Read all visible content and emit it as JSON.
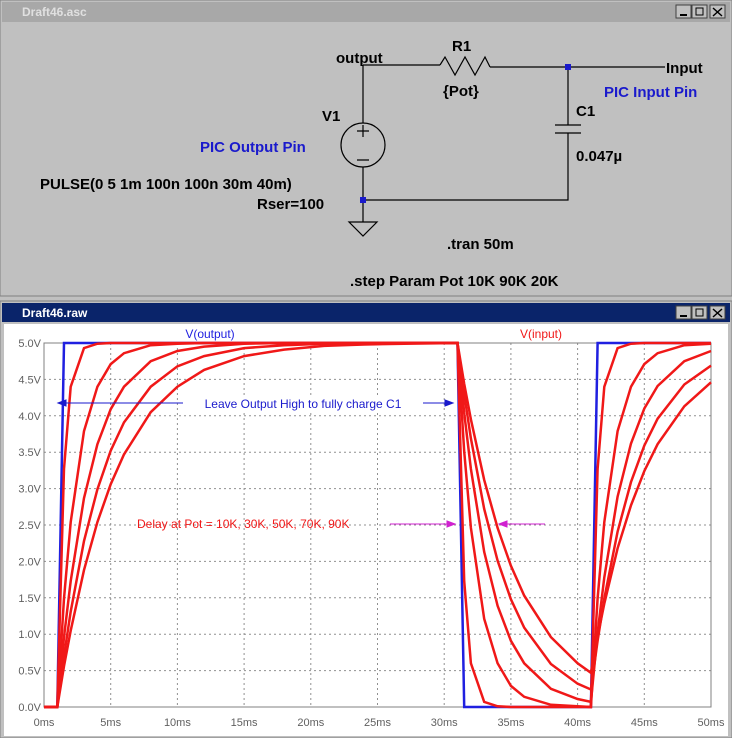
{
  "schematic": {
    "window_title": "Draft46.asc",
    "labels": {
      "output": "output",
      "r1": "R1",
      "r1_value": "{Pot}",
      "input": "Input",
      "input_note": "PIC Input Pin",
      "c1": "C1",
      "c1_value": "0.047µ",
      "v1": "V1",
      "output_note": "PIC Output Pin",
      "v1_value": "PULSE(0 5 1m 100n 100n 30m 40m)",
      "v1_rser": "Rser=100",
      "tran": ".tran 50m",
      "step": ".step Param Pot 10K 90K 20K"
    }
  },
  "plot_window_title": "Draft46.raw",
  "chart_data": {
    "type": "line",
    "x": [
      0,
      1,
      1.5,
      2,
      3,
      4,
      5,
      6,
      8,
      10,
      12,
      15,
      18,
      21,
      24,
      27,
      31,
      31.5,
      32,
      33,
      34,
      35,
      36,
      38,
      40,
      41,
      41.5,
      42,
      43,
      44,
      45,
      46,
      48,
      50
    ],
    "series": [
      {
        "name": "V(output)",
        "color": "#2020e0",
        "values": [
          0,
          0,
          5,
          5,
          5,
          5,
          5,
          5,
          5,
          5,
          5,
          5,
          5,
          5,
          5,
          5,
          5,
          0,
          0,
          0,
          0,
          0,
          0,
          0,
          0,
          0,
          5,
          5,
          5,
          5,
          5,
          5,
          5,
          5
        ]
      },
      {
        "name": "V(input)",
        "color": "#f01818",
        "values": [
          0,
          0,
          3.27,
          4.4,
          4.93,
          4.99,
          5,
          5,
          5,
          5,
          5,
          5,
          5,
          5,
          5,
          5,
          5,
          1.73,
          0.6,
          0.07,
          0.01,
          0,
          0,
          0,
          0,
          0,
          3.27,
          4.4,
          4.93,
          4.99,
          5,
          5,
          5,
          5
        ]
      },
      {
        "color": "#f01818",
        "values": [
          0,
          0,
          1.49,
          2.54,
          3.79,
          4.4,
          4.71,
          4.86,
          4.97,
          4.99,
          5,
          5,
          5,
          5,
          5,
          5,
          5,
          3.51,
          2.46,
          1.21,
          0.6,
          0.29,
          0.14,
          0.03,
          0.01,
          0,
          1.49,
          2.54,
          3.79,
          4.4,
          4.71,
          4.86,
          4.97,
          4.99
        ]
      },
      {
        "color": "#f01818",
        "values": [
          0,
          0,
          0.96,
          1.73,
          2.87,
          3.61,
          4.09,
          4.4,
          4.75,
          4.89,
          4.95,
          4.99,
          5,
          5,
          5,
          5,
          5,
          4.04,
          3.27,
          2.13,
          1.39,
          0.91,
          0.6,
          0.25,
          0.11,
          0.07,
          1.02,
          1.78,
          2.89,
          3.62,
          4.1,
          4.41,
          4.75,
          4.89
        ]
      },
      {
        "color": "#f01818",
        "values": [
          0,
          0,
          0.7,
          1.31,
          2.28,
          2.99,
          3.52,
          3.91,
          4.4,
          4.68,
          4.82,
          4.93,
          4.97,
          4.99,
          5,
          5,
          5,
          4.3,
          3.69,
          2.72,
          2.01,
          1.48,
          1.09,
          0.59,
          0.32,
          0.24,
          0.91,
          1.49,
          2.41,
          3.09,
          3.59,
          3.96,
          4.43,
          4.69
        ]
      },
      {
        "color": "#f01818",
        "values": [
          0,
          0,
          0.56,
          1.05,
          1.88,
          2.54,
          3.06,
          3.47,
          4.05,
          4.4,
          4.63,
          4.82,
          4.91,
          4.96,
          4.98,
          4.99,
          5,
          4.44,
          3.95,
          3.12,
          2.46,
          1.94,
          1.53,
          0.96,
          0.6,
          0.47,
          0.97,
          1.42,
          2.18,
          2.77,
          3.24,
          3.61,
          4.13,
          4.46
        ]
      }
    ],
    "xlim": [
      0,
      50
    ],
    "xticks": [
      {
        "value": 0,
        "label": "0ms"
      },
      {
        "value": 5,
        "label": "5ms"
      },
      {
        "value": 10,
        "label": "10ms"
      },
      {
        "value": 15,
        "label": "15ms"
      },
      {
        "value": 20,
        "label": "20ms"
      },
      {
        "value": 25,
        "label": "25ms"
      },
      {
        "value": 30,
        "label": "30ms"
      },
      {
        "value": 35,
        "label": "35ms"
      },
      {
        "value": 40,
        "label": "40ms"
      },
      {
        "value": 45,
        "label": "45ms"
      },
      {
        "value": 50,
        "label": "50ms"
      }
    ],
    "ylim": [
      0,
      5
    ],
    "yticks": [
      {
        "value": 0,
        "label": "0.0V"
      },
      {
        "value": 0.5,
        "label": "0.5V"
      },
      {
        "value": 1,
        "label": "1.0V"
      },
      {
        "value": 1.5,
        "label": "1.5V"
      },
      {
        "value": 2,
        "label": "2.0V"
      },
      {
        "value": 2.5,
        "label": "2.5V"
      },
      {
        "value": 3,
        "label": "3.0V"
      },
      {
        "value": 3.5,
        "label": "3.5V"
      },
      {
        "value": 4,
        "label": "4.0V"
      },
      {
        "value": 4.5,
        "label": "4.5V"
      },
      {
        "value": 5,
        "label": "5.0V"
      }
    ],
    "grid": true,
    "annotations": [
      "Leave Output High to fully charge C1",
      "Delay at Pot = 10K, 30K, 50K, 70K, 90K"
    ]
  }
}
